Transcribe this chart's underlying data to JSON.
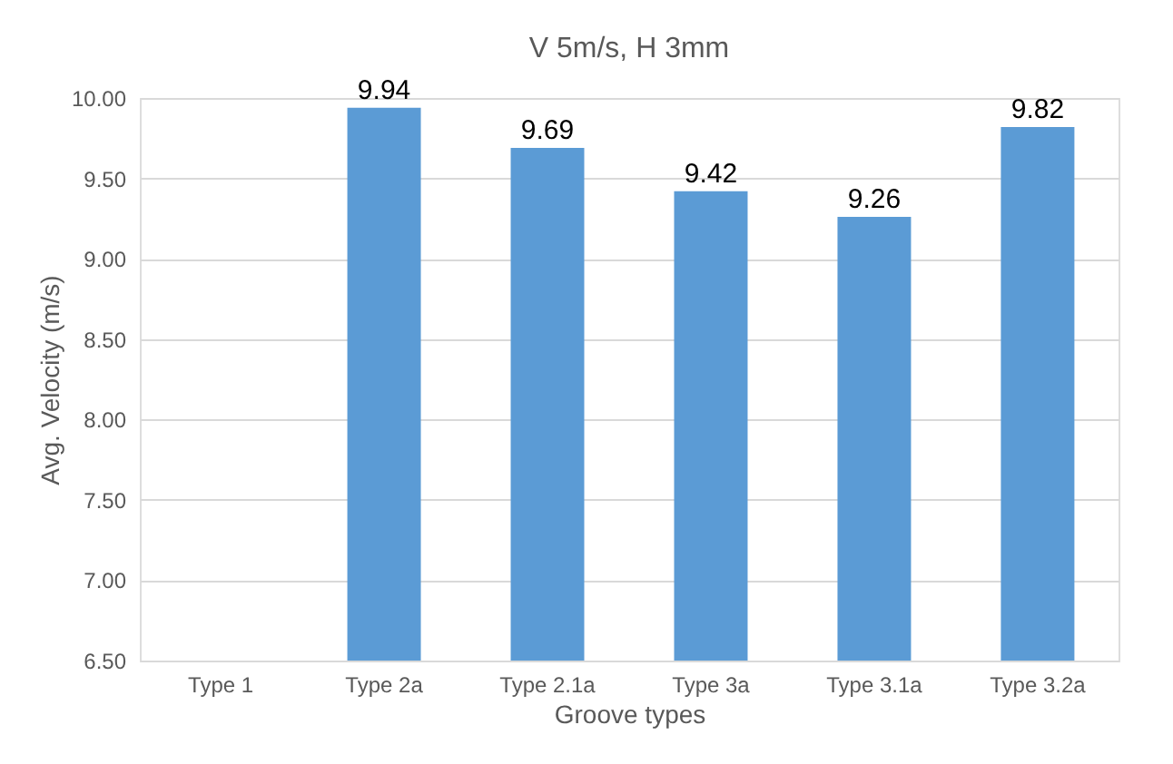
{
  "chart_data": {
    "type": "bar",
    "title": "V 5m/s, H 3mm",
    "xlabel": "Groove types",
    "ylabel": "Avg. Velocity (m/s)",
    "categories": [
      "Type 1",
      "Type 2a",
      "Type 2.1a",
      "Type 3a",
      "Type 3.1a",
      "Type 3.2a"
    ],
    "values": [
      null,
      9.94,
      9.69,
      9.42,
      9.26,
      9.82
    ],
    "color": "#5b9bd5",
    "ylim": [
      6.5,
      10.0
    ],
    "yticks": [
      {
        "value": 6.5,
        "label": "6.50"
      },
      {
        "value": 7.0,
        "label": "7.00"
      },
      {
        "value": 7.5,
        "label": "7.50"
      },
      {
        "value": 8.0,
        "label": "8.00"
      },
      {
        "value": 8.5,
        "label": "8.50"
      },
      {
        "value": 9.0,
        "label": "9.00"
      },
      {
        "value": 9.5,
        "label": "9.50"
      },
      {
        "value": 10.0,
        "label": "10.00"
      }
    ],
    "grid": "y",
    "data_labels": true
  }
}
